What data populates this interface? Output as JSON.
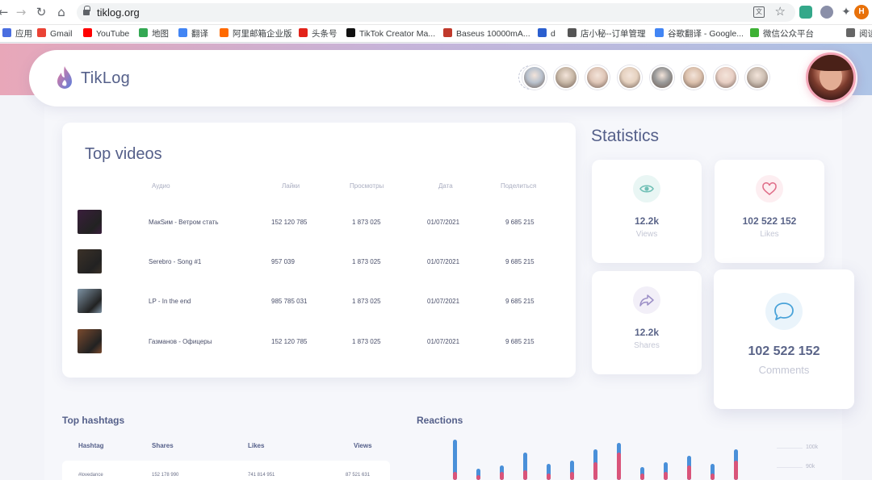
{
  "browser": {
    "url": "tiklog.org",
    "profile_initial": "H",
    "bookmarks": [
      {
        "label": "应用",
        "color": "#4a6ee0"
      },
      {
        "label": "Gmail",
        "color": "#ea4335"
      },
      {
        "label": "YouTube",
        "color": "#ff0000"
      },
      {
        "label": "地图",
        "color": "#34a853"
      },
      {
        "label": "翻译",
        "color": "#4285f4"
      },
      {
        "label": "阿里邮箱企业版",
        "color": "#ff6a00"
      },
      {
        "label": "头条号",
        "color": "#e2231a"
      },
      {
        "label": "TikTok Creator Ma...",
        "color": "#111111"
      },
      {
        "label": "Baseus 10000mA...",
        "color": "#c0392b"
      },
      {
        "label": "d",
        "color": "#2b5fcf"
      },
      {
        "label": "店小秘--订单管理",
        "color": "#555555"
      },
      {
        "label": "谷歌翻译 - Google...",
        "color": "#4285f4"
      },
      {
        "label": "微信公众平台",
        "color": "#3eb135"
      },
      {
        "label": "阅读",
        "color": "#666666"
      }
    ]
  },
  "header": {
    "brand": "TikLog",
    "add_symbol": "+",
    "avatars": [
      "#b9c2ce",
      "#c9b9a8",
      "#e0c7b8",
      "#e6d2c0",
      "#9a9a9a",
      "#dcc1ad",
      "#e8cfc4",
      "#cdbfb3"
    ]
  },
  "top_videos": {
    "title": "Top videos",
    "columns": [
      "Аудио",
      "Лайки",
      "Просмотры",
      "Дата",
      "Поделиться"
    ],
    "rows": [
      {
        "audio": "МакSим - Ветром стать",
        "likes": "152 120 785",
        "views": "1 873 025",
        "date": "01/07/2021",
        "shares": "9 685 215",
        "thumb": "#3a1e3c"
      },
      {
        "audio": "Serebro - Song #1",
        "likes": "957 039",
        "views": "1 873 025",
        "date": "01/07/2021",
        "shares": "9 685 215",
        "thumb": "#3b3128"
      },
      {
        "audio": "LP - In the end",
        "likes": "985 785 031",
        "views": "1 873 025",
        "date": "01/07/2021",
        "shares": "9 685 215",
        "thumb": "#7e93a4"
      },
      {
        "audio": "Газманов - Офицеры",
        "likes": "152 120 785",
        "views": "1 873 025",
        "date": "01/07/2021",
        "shares": "9 685 215",
        "thumb": "#7a4a2e"
      }
    ]
  },
  "statistics": {
    "title": "Statistics",
    "views": {
      "value": "12.2k",
      "label": "Views"
    },
    "likes": {
      "value": "102 522 152",
      "label": "Likes"
    },
    "shares": {
      "value": "12.2k",
      "label": "Shares"
    },
    "comments": {
      "value": "102 522 152",
      "label": "Comments"
    }
  },
  "hashtags": {
    "title": "Top hashtags",
    "columns": [
      "Hashtag",
      "Shares",
      "Likes",
      "Views"
    ],
    "rows": [
      {
        "hashtag": "#lovedance",
        "shares": "152 178 990",
        "likes": "741 814 951",
        "views": "87 521 631"
      }
    ]
  },
  "reactions": {
    "title": "Reactions",
    "axis_labels": [
      "100k",
      "90k"
    ]
  },
  "chart_data": {
    "type": "bar",
    "title": "Reactions",
    "y_ticks": [
      "100k",
      "90k"
    ],
    "series": [
      {
        "color": "#4a90d9",
        "values": [
          100,
          82,
          84,
          92,
          85,
          87,
          94,
          98,
          83,
          86,
          90,
          85,
          94
        ]
      },
      {
        "color": "#d9547a",
        "values": [
          80,
          78,
          80,
          81,
          79,
          80,
          86,
          92,
          79,
          80,
          84,
          79,
          87
        ]
      }
    ]
  },
  "colors": {
    "accent": "#55608a",
    "views_icon": "#7cc3bb",
    "likes_icon": "#e8758f",
    "shares_icon": "#a394c9",
    "comments_icon": "#4aa3d9"
  }
}
